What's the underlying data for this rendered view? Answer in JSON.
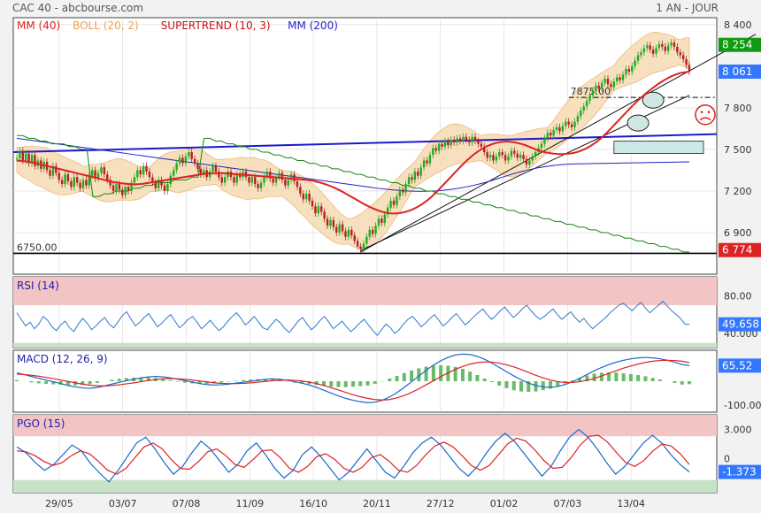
{
  "header": {
    "title": "CAC 40 - abcbourse.com",
    "period": "1 AN - JOUR"
  },
  "colors": {
    "background": "#f2f2f2",
    "panel": "#ffffff",
    "frame": "#444444",
    "grid": "#d8d8d8",
    "candle_up": "#22aa22",
    "candle_down": "#b22222",
    "mm40": "#dd2222",
    "mm200": "#2222cc",
    "boll_fill": "#f7ddb8",
    "boll_line": "#f0b070",
    "supertrend_up": "#118811",
    "supertrend_down": "#cc1111",
    "trendline_blue": "#1a1acc",
    "channel": "#111111",
    "support": "#000000",
    "rsi": "#3377cc",
    "macd": "#1a66cc",
    "macd_signal": "#dd2222",
    "macd_hist": "#66bb66",
    "pgo": "#1a66cc",
    "pgo_signal": "#dd2222",
    "zone_high": "#f2c4c4",
    "zone_low": "#c8e2c8",
    "tag_green": "#119911",
    "tag_blue": "#3377ff",
    "tag_red": "#dd2222"
  },
  "chart_data": [
    {
      "type": "candlestick",
      "title": "CAC 40",
      "legend": [
        {
          "name": "MM (40)",
          "color": "#dd2222"
        },
        {
          "name": "BOLL (20, 2)",
          "color": "#f0a050"
        },
        {
          "name": "SUPERTREND (10, 3)",
          "color": "#cc1111"
        },
        {
          "name": "MM (200)",
          "color": "#2222cc"
        }
      ],
      "ylim": [
        6600,
        8450
      ],
      "y_ticks": [
        "8 400",
        "7 800",
        "7 500",
        "7 200",
        "6 900"
      ],
      "y_tick_values": [
        8400,
        7800,
        7500,
        7200,
        6900
      ],
      "x_ticks": [
        "29/05",
        "03/07",
        "07/08",
        "11/09",
        "16/10",
        "20/11",
        "27/12",
        "01/02",
        "07/03",
        "13/04"
      ],
      "x_tick_index": [
        16,
        40,
        64,
        88,
        112,
        136,
        160,
        184,
        208,
        232
      ],
      "n_sessions": 255,
      "price_tags": [
        {
          "label": "8 254",
          "value": 8254,
          "style": "green"
        },
        {
          "label": "8 061",
          "value": 8061,
          "style": "blue"
        },
        {
          "label": "6 774",
          "value": 6774,
          "style": "red"
        }
      ],
      "close": [
        7435,
        7490,
        7420,
        7470,
        7400,
        7460,
        7380,
        7420,
        7360,
        7410,
        7350,
        7310,
        7380,
        7330,
        7280,
        7250,
        7320,
        7270,
        7230,
        7300,
        7260,
        7220,
        7280,
        7240,
        7310,
        7350,
        7290,
        7330,
        7370,
        7320,
        7280,
        7240,
        7200,
        7250,
        7210,
        7170,
        7230,
        7200,
        7260,
        7300,
        7350,
        7320,
        7380,
        7340,
        7300,
        7260,
        7220,
        7280,
        7240,
        7200,
        7250,
        7310,
        7350,
        7400,
        7440,
        7400,
        7450,
        7480,
        7430,
        7400,
        7360,
        7320,
        7350,
        7300,
        7340,
        7380,
        7340,
        7300,
        7260,
        7300,
        7340,
        7300,
        7260,
        7320,
        7300,
        7340,
        7300,
        7260,
        7300,
        7250,
        7220,
        7260,
        7300,
        7340,
        7290,
        7260,
        7300,
        7330,
        7280,
        7240,
        7280,
        7320,
        7270,
        7230,
        7180,
        7140,
        7180,
        7130,
        7090,
        7040,
        7090,
        7050,
        7000,
        6950,
        6990,
        6940,
        6900,
        6960,
        6910,
        6870,
        6920,
        6880,
        6840,
        6800,
        6780,
        6820,
        6870,
        6920,
        6890,
        6950,
        7000,
        6970,
        7030,
        7080,
        7130,
        7100,
        7160,
        7210,
        7190,
        7250,
        7300,
        7280,
        7340,
        7310,
        7370,
        7420,
        7400,
        7460,
        7510,
        7490,
        7540,
        7520,
        7560,
        7530,
        7570,
        7550,
        7580,
        7560,
        7590,
        7570,
        7550,
        7590,
        7560,
        7540,
        7520,
        7480,
        7440,
        7460,
        7420,
        7450,
        7480,
        7460,
        7420,
        7450,
        7490,
        7470,
        7440,
        7460,
        7430,
        7390,
        7420,
        7450,
        7480,
        7510,
        7540,
        7580,
        7620,
        7600,
        7640,
        7660,
        7630,
        7670,
        7700,
        7680,
        7660,
        7700,
        7740,
        7780,
        7810,
        7850,
        7890,
        7920,
        7960,
        7940,
        7980,
        8010,
        7970,
        7950,
        7990,
        8020,
        8000,
        8040,
        8080,
        8060,
        8100,
        8140,
        8180,
        8200,
        8230,
        8250,
        8220,
        8190,
        8230,
        8260,
        8240,
        8210,
        8250,
        8270,
        8240,
        8200,
        8180,
        8150,
        8110,
        8061
      ],
      "mm40": [
        7420,
        7418,
        7415,
        7412,
        7408,
        7404,
        7398,
        7392,
        7386,
        7380,
        7374,
        7368,
        7362,
        7356,
        7350,
        7344,
        7338,
        7332,
        7326,
        7320,
        7314,
        7308,
        7302,
        7296,
        7290,
        7284,
        7278,
        7272,
        7266,
        7262,
        7258,
        7255,
        7252,
        7250,
        7248,
        7248,
        7250,
        7252,
        7256,
        7260,
        7264,
        7268,
        7272,
        7276,
        7280,
        7284,
        7288,
        7292,
        7296,
        7300,
        7304,
        7308,
        7312,
        7316,
        7320,
        7324,
        7326,
        7328,
        7330,
        7330,
        7330,
        7328,
        7326,
        7324,
        7322,
        7320,
        7318,
        7316,
        7314,
        7312,
        7310,
        7308,
        7306,
        7304,
        7302,
        7300,
        7298,
        7296,
        7294,
        7292,
        7290,
        7288,
        7286,
        7284,
        7282,
        7280,
        7276,
        7272,
        7266,
        7260,
        7252,
        7244,
        7234,
        7224,
        7212,
        7200,
        7186,
        7172,
        7158,
        7144,
        7130,
        7116,
        7102,
        7090,
        7078,
        7068,
        7058,
        7050,
        7044,
        7040,
        7038,
        7038,
        7040,
        7044,
        7050,
        7058,
        7068,
        7080,
        7094,
        7110,
        7128,
        7148,
        7170,
        7194,
        7220,
        7246,
        7272,
        7298,
        7324,
        7350,
        7376,
        7400,
        7424,
        7446,
        7466,
        7484,
        7500,
        7514,
        7526,
        7536,
        7544,
        7550,
        7554,
        7556,
        7556,
        7554,
        7550,
        7544,
        7538,
        7530,
        7520,
        7510,
        7500,
        7492,
        7484,
        7478,
        7474,
        7470,
        7468,
        7466,
        7466,
        7468,
        7470,
        7474,
        7480,
        7488,
        7498,
        7510,
        7524,
        7540,
        7558,
        7578,
        7600,
        7624,
        7650,
        7676,
        7702,
        7728,
        7754,
        7780,
        7806,
        7830,
        7854,
        7876,
        7898,
        7918,
        7938,
        7956,
        7974,
        7990,
        8004,
        8018,
        8030,
        8040,
        8048,
        8054,
        8058,
        8061
      ],
      "mm200": [
        7580,
        7572,
        7564,
        7556,
        7548,
        7540,
        7532,
        7524,
        7516,
        7508,
        7500,
        7492,
        7484,
        7476,
        7468,
        7460,
        7452,
        7444,
        7436,
        7428,
        7420,
        7412,
        7404,
        7396,
        7388,
        7380,
        7372,
        7364,
        7356,
        7348,
        7340,
        7332,
        7324,
        7316,
        7308,
        7300,
        7292,
        7284,
        7276,
        7268,
        7260,
        7252,
        7244,
        7236,
        7228,
        7220,
        7214,
        7208,
        7204,
        7200,
        7198,
        7198,
        7200,
        7204,
        7210,
        7218,
        7228,
        7240,
        7254,
        7270,
        7288,
        7306,
        7324,
        7340,
        7354,
        7366,
        7376,
        7384,
        7390,
        7394,
        7396,
        7397,
        7398,
        7399,
        7400,
        7401,
        7402,
        7403,
        7404,
        7405,
        7406,
        7407,
        7408,
        7409,
        7410
      ],
      "supertrend": [
        7600,
        7600,
        7580,
        7580,
        7560,
        7560,
        7540,
        7540,
        7540,
        7520,
        7520,
        7500,
        7500,
        7160,
        7160,
        7180,
        7180,
        7200,
        7200,
        7200,
        7220,
        7220,
        7240,
        7240,
        7260,
        7260,
        7260,
        7280,
        7280,
        7280,
        7300,
        7300,
        7580,
        7580,
        7560,
        7560,
        7540,
        7540,
        7520,
        7520,
        7500,
        7500,
        7480,
        7480,
        7460,
        7460,
        7440,
        7440,
        7420,
        7420,
        7400,
        7400,
        7380,
        7380,
        7360,
        7360,
        7340,
        7340,
        7320,
        7320,
        7300,
        7300,
        7280,
        7280,
        7260,
        7260,
        7240,
        7240,
        7220,
        7220,
        7200,
        7200,
        7180,
        7180,
        7160,
        7160,
        7140,
        7140,
        7120,
        7120,
        7100,
        7100,
        7080,
        7080,
        7060,
        7060,
        7040,
        7040,
        7020,
        7020,
        7000,
        7000,
        6980,
        6980,
        6960,
        6960,
        6940,
        6940,
        6920,
        6920,
        6900,
        6900,
        6880,
        6880,
        6860,
        6860,
        6840,
        6840,
        6820,
        6820,
        6800,
        6800,
        6780,
        6780,
        6760,
        6760
      ],
      "annotations": [
        {
          "text": "7875.00",
          "value": 7875
        },
        {
          "text": "6750.00",
          "value": 6750
        }
      ],
      "supports": [
        6750,
        7875
      ]
    },
    {
      "type": "line",
      "title": "RSI (14)",
      "ylim": [
        25,
        100
      ],
      "y_ticks": [
        "80.00",
        "40.000"
      ],
      "y_tick_values": [
        80,
        40
      ],
      "overbought": 70,
      "oversold": 30,
      "current_label": "49.658",
      "values": [
        62,
        55,
        48,
        52,
        45,
        50,
        58,
        54,
        47,
        43,
        49,
        53,
        46,
        42,
        50,
        56,
        51,
        44,
        48,
        53,
        57,
        50,
        46,
        52,
        59,
        63,
        55,
        48,
        52,
        57,
        61,
        54,
        47,
        51,
        56,
        60,
        53,
        46,
        50,
        55,
        58,
        52,
        45,
        49,
        54,
        48,
        43,
        47,
        53,
        58,
        62,
        56,
        49,
        53,
        58,
        52,
        46,
        44,
        50,
        55,
        51,
        45,
        41,
        47,
        53,
        57,
        50,
        44,
        48,
        54,
        58,
        52,
        45,
        49,
        53,
        47,
        42,
        46,
        51,
        55,
        49,
        43,
        38,
        44,
        50,
        46,
        40,
        44,
        50,
        55,
        58,
        53,
        47,
        51,
        56,
        60,
        54,
        48,
        52,
        57,
        61,
        55,
        49,
        53,
        58,
        62,
        66,
        60,
        55,
        59,
        64,
        68,
        62,
        57,
        61,
        66,
        70,
        64,
        59,
        55,
        58,
        62,
        66,
        60,
        55,
        59,
        63,
        57,
        52,
        56,
        50,
        45,
        49,
        53,
        57,
        62,
        66,
        70,
        72,
        68,
        64,
        69,
        73,
        67,
        62,
        66,
        70,
        74,
        69,
        64,
        60,
        56,
        50,
        49.658
      ]
    },
    {
      "type": "line",
      "title": "MACD (12, 26, 9)",
      "ylim": [
        -130,
        130
      ],
      "y_ticks": [
        "65.52",
        "-100.00"
      ],
      "y_tick_values": [
        65.52,
        -100
      ],
      "current_label": "65.52",
      "macd": [
        35,
        28,
        20,
        12,
        5,
        -2,
        -10,
        -18,
        -24,
        -28,
        -30,
        -26,
        -20,
        -12,
        -5,
        2,
        8,
        14,
        18,
        20,
        18,
        14,
        8,
        2,
        -4,
        -10,
        -14,
        -16,
        -15,
        -12,
        -8,
        -4,
        0,
        4,
        8,
        10,
        8,
        4,
        -2,
        -8,
        -16,
        -26,
        -38,
        -50,
        -62,
        -72,
        -80,
        -86,
        -90,
        -88,
        -80,
        -66,
        -48,
        -26,
        -2,
        22,
        46,
        68,
        86,
        100,
        110,
        114,
        112,
        104,
        92,
        76,
        58,
        40,
        22,
        6,
        -8,
        -18,
        -24,
        -26,
        -22,
        -14,
        -2,
        12,
        28,
        44,
        58,
        70,
        80,
        88,
        94,
        98,
        100,
        98,
        94,
        88,
        80,
        70,
        65.52
      ],
      "signal": [
        30,
        28,
        25,
        21,
        16,
        11,
        5,
        -1,
        -7,
        -12,
        -17,
        -19,
        -20,
        -18,
        -15,
        -11,
        -7,
        -2,
        3,
        7,
        10,
        11,
        10,
        8,
        5,
        1,
        -3,
        -7,
        -9,
        -10,
        -10,
        -9,
        -7,
        -4,
        -1,
        2,
        4,
        5,
        4,
        1,
        -4,
        -10,
        -18,
        -27,
        -37,
        -47,
        -57,
        -65,
        -72,
        -77,
        -79,
        -77,
        -70,
        -60,
        -47,
        -32,
        -15,
        2,
        19,
        35,
        50,
        62,
        72,
        78,
        81,
        80,
        76,
        69,
        60,
        49,
        37,
        25,
        14,
        5,
        -2,
        -5,
        -5,
        -2,
        4,
        12,
        22,
        33,
        44,
        55,
        64,
        72,
        79,
        84,
        87,
        88,
        87,
        84,
        78
      ]
    },
    {
      "type": "line",
      "title": "PGO (15)",
      "ylim": [
        -3.5,
        4.5
      ],
      "y_ticks": [
        "3.000",
        "0"
      ],
      "y_tick_values": [
        3,
        0
      ],
      "current_label": "-1.373",
      "values": [
        1.2,
        0.6,
        -0.4,
        -1.2,
        -0.6,
        0.4,
        1.4,
        0.8,
        -0.5,
        -1.5,
        -2.4,
        -1.2,
        0.2,
        1.6,
        2.2,
        1.0,
        -0.4,
        -1.6,
        -0.8,
        0.6,
        1.8,
        1.0,
        -0.2,
        -1.4,
        -0.6,
        0.8,
        1.6,
        0.4,
        -1.0,
        -2.0,
        -1.2,
        0.4,
        1.2,
        0.2,
        -1.0,
        -2.2,
        -1.4,
        -0.2,
        1.0,
        -0.2,
        -1.4,
        -2.0,
        -0.8,
        0.6,
        1.6,
        2.2,
        1.4,
        0.2,
        -1.0,
        -1.8,
        -0.8,
        0.6,
        1.8,
        2.6,
        1.8,
        0.6,
        -0.6,
        -1.8,
        -0.8,
        0.8,
        2.2,
        3.0,
        2.2,
        1.0,
        -0.4,
        -1.6,
        -0.8,
        0.4,
        1.6,
        2.4,
        1.6,
        0.4,
        -0.6,
        -1.373
      ],
      "signal": [
        0.8,
        0.7,
        0.3,
        -0.3,
        -0.7,
        -0.4,
        0.3,
        0.8,
        0.5,
        -0.3,
        -1.2,
        -1.6,
        -1.0,
        0.1,
        1.2,
        1.6,
        1.0,
        -0.1,
        -1.0,
        -1.1,
        -0.3,
        0.7,
        1.0,
        0.3,
        -0.6,
        -0.9,
        -0.1,
        0.8,
        0.9,
        0.1,
        -1.0,
        -1.4,
        -0.8,
        0.2,
        0.5,
        -0.1,
        -1.0,
        -1.4,
        -0.9,
        0.1,
        0.4,
        -0.3,
        -1.2,
        -1.4,
        -0.7,
        0.4,
        1.3,
        1.7,
        1.2,
        0.3,
        -0.7,
        -1.2,
        -0.7,
        0.4,
        1.5,
        2.1,
        1.8,
        0.9,
        -0.2,
        -1.0,
        -0.9,
        0.1,
        1.4,
        2.3,
        2.4,
        1.7,
        0.6,
        -0.4,
        -0.8,
        -0.2,
        0.8,
        1.5,
        1.3,
        0.5,
        -0.6
      ]
    }
  ]
}
